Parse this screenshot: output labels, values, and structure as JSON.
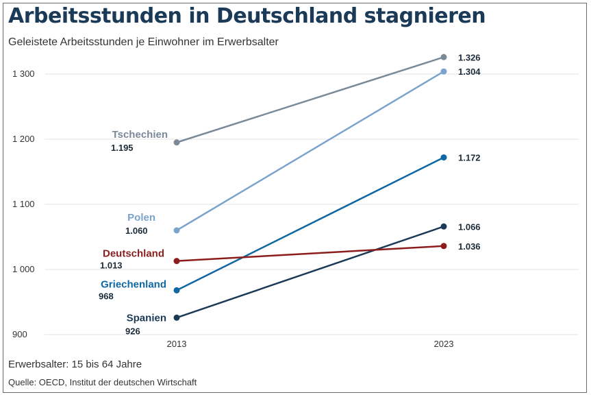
{
  "header": {
    "title": "Arbeitsstunden in Deutschland stagnieren",
    "subtitle": "Geleistete Arbeitsstunden je Einwohner im Erwerbsalter"
  },
  "footer": {
    "note": "Erwerbsalter: 15 bis 64 Jahre",
    "source": "Quelle: OECD, Institut der deutschen Wirtschaft"
  },
  "chart_data": {
    "type": "line",
    "title": "Arbeitsstunden in Deutschland stagnieren",
    "subtitle": "Geleistete Arbeitsstunden je Einwohner im Erwerbsalter",
    "x": [
      "2013",
      "2023"
    ],
    "ylim": [
      900,
      1300
    ],
    "yticks": [
      900,
      1000,
      1100,
      1200,
      1300
    ],
    "ytick_labels": [
      "900",
      "1 000",
      "1 100",
      "1 200",
      "1 300"
    ],
    "grid": true,
    "series": [
      {
        "name": "Tschechien",
        "values": [
          1195,
          1326
        ],
        "labels": [
          "1.195",
          "1.326"
        ],
        "color": "#7a8a99"
      },
      {
        "name": "Polen",
        "values": [
          1060,
          1304
        ],
        "labels": [
          "1.060",
          "1.304"
        ],
        "color": "#7ba3cc"
      },
      {
        "name": "Griechenland",
        "values": [
          968,
          1172
        ],
        "labels": [
          "968",
          "1.172"
        ],
        "color": "#0f67a3"
      },
      {
        "name": "Spanien",
        "values": [
          926,
          1066
        ],
        "labels": [
          "926",
          "1.066"
        ],
        "color": "#1b3a57"
      },
      {
        "name": "Deutschland",
        "values": [
          1013,
          1036
        ],
        "labels": [
          "1.013",
          "1.036"
        ],
        "color": "#8b1d1d"
      }
    ]
  }
}
